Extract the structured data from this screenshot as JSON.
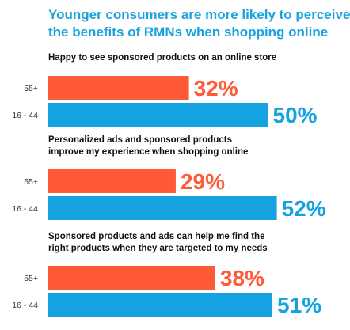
{
  "colors": {
    "title": "#1aa3df",
    "series_55plus": "#ff5a36",
    "series_16_44": "#14a3e0",
    "question": "#111111",
    "category": "#333333"
  },
  "chart_data": {
    "type": "bar",
    "orientation": "horizontal",
    "title": "Younger consumers are more likely to perceive the benefits of RMNs when shopping online",
    "title_lines": [
      "Younger consumers are more likely to perceive",
      "the benefits of RMNs when shopping online"
    ],
    "categories": [
      "55+",
      "16 - 44"
    ],
    "xlim": [
      0,
      100
    ],
    "grid": false,
    "value_suffix": "%",
    "groups": [
      {
        "question_lines": [
          "Happy to see sponsored products on an online store"
        ],
        "values": [
          32,
          50
        ],
        "value_labels": [
          "32%",
          "50%"
        ]
      },
      {
        "question_lines": [
          "Personalized ads and sponsored products",
          "improve my experience when shopping online"
        ],
        "values": [
          29,
          52
        ],
        "value_labels": [
          "29%",
          "52%"
        ]
      },
      {
        "question_lines": [
          "Sponsored products and ads can help me find the",
          "right products when they are targeted to my needs"
        ],
        "values": [
          38,
          51
        ],
        "value_labels": [
          "38%",
          "51%"
        ]
      }
    ]
  }
}
